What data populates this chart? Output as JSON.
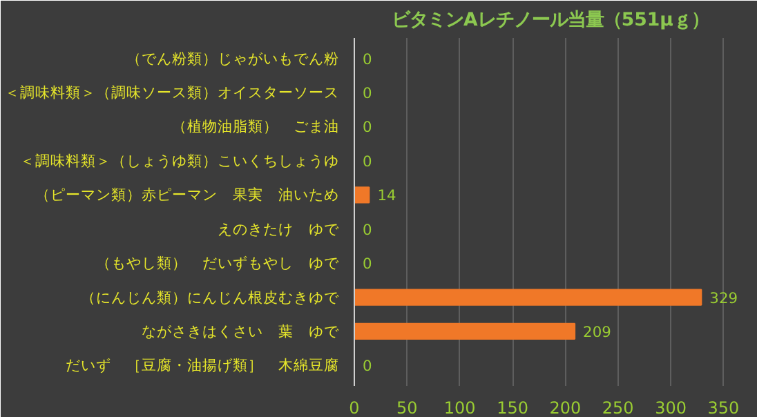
{
  "chart_data": {
    "type": "bar",
    "orientation": "horizontal",
    "title": "ビタミンAレチノール当量（551μｇ）",
    "categories": [
      "（でん粉類）じゃがいもでん粉",
      "＜調味料類＞（調味ソース類）オイスターソース",
      "（植物油脂類）　ごま油",
      "＜調味料類＞（しょうゆ類）こいくちしょうゆ",
      "（ピーマン類）赤ピーマン　果実　油いため",
      "えのきたけ　ゆで",
      "（もやし類）　だいずもやし　ゆで",
      "（にんじん類）にんじん根皮むきゆで",
      "ながさきはくさい　葉　ゆで",
      "だいず　［豆腐・油揚げ類］　木綿豆腐"
    ],
    "values": [
      0,
      0,
      0,
      0,
      14,
      0,
      0,
      329,
      209,
      0
    ],
    "color": "#f07828",
    "xlim": [
      0,
      372
    ],
    "xticks": [
      0,
      50,
      100,
      150,
      200,
      250,
      300,
      350
    ],
    "grid": "x",
    "data_labels": true
  }
}
